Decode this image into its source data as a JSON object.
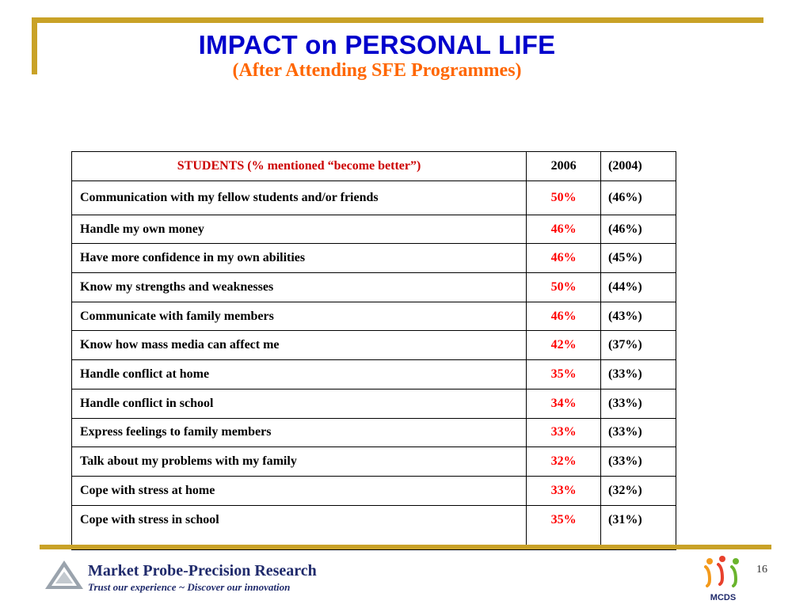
{
  "slide": {
    "title": "IMPACT on PERSONAL LIFE",
    "subtitle": "(After Attending SFE Programmes)",
    "page_number": "16"
  },
  "colors": {
    "frame": "#c9a227",
    "title": "#0000cc",
    "subtitle": "#ff6600",
    "value_2006": "#ff0000",
    "header_label": "#cc0000",
    "brand": "#1f2a6b"
  },
  "table": {
    "headers": {
      "item": "STUDENTS (% mentioned “become better”)",
      "y2006": "2006",
      "y2004": "(2004)"
    },
    "rows": [
      {
        "item": "Communication with my fellow students and/or friends",
        "y2006": "50%",
        "y2004": "(46%)"
      },
      {
        "item": "Handle my own money",
        "y2006": "46%",
        "y2004": "(46%)"
      },
      {
        "item": "Have more confidence in my own abilities",
        "y2006": "46%",
        "y2004": "(45%)"
      },
      {
        "item": "Know my strengths and weaknesses",
        "y2006": "50%",
        "y2004": "(44%)"
      },
      {
        "item": "Communicate with family members",
        "y2006": "46%",
        "y2004": "(43%)"
      },
      {
        "item": "Know how mass media can affect me",
        "y2006": "42%",
        "y2004": "(37%)"
      },
      {
        "item": "Handle conflict at home",
        "y2006": "35%",
        "y2004": "(33%)"
      },
      {
        "item": "Handle conflict in school",
        "y2006": "34%",
        "y2004": "(33%)"
      },
      {
        "item": "Express feelings to family members",
        "y2006": "33%",
        "y2004": "(33%)"
      },
      {
        "item": "Talk about my problems with my family",
        "y2006": "32%",
        "y2004": "(33%)"
      },
      {
        "item": "Cope with stress at home",
        "y2006": "33%",
        "y2004": "(32%)"
      },
      {
        "item": "Cope with stress in school",
        "y2006": "35%",
        "y2004": "(31%)"
      }
    ]
  },
  "footer": {
    "brand_name": "Market Probe-Precision Research",
    "tagline": "Trust our experience ~ Discover our innovation",
    "left_logo_icon": "triangle-logo-icon",
    "right_logo": {
      "icon": "mcds-people-logo-icon",
      "text": "MCDS"
    }
  }
}
